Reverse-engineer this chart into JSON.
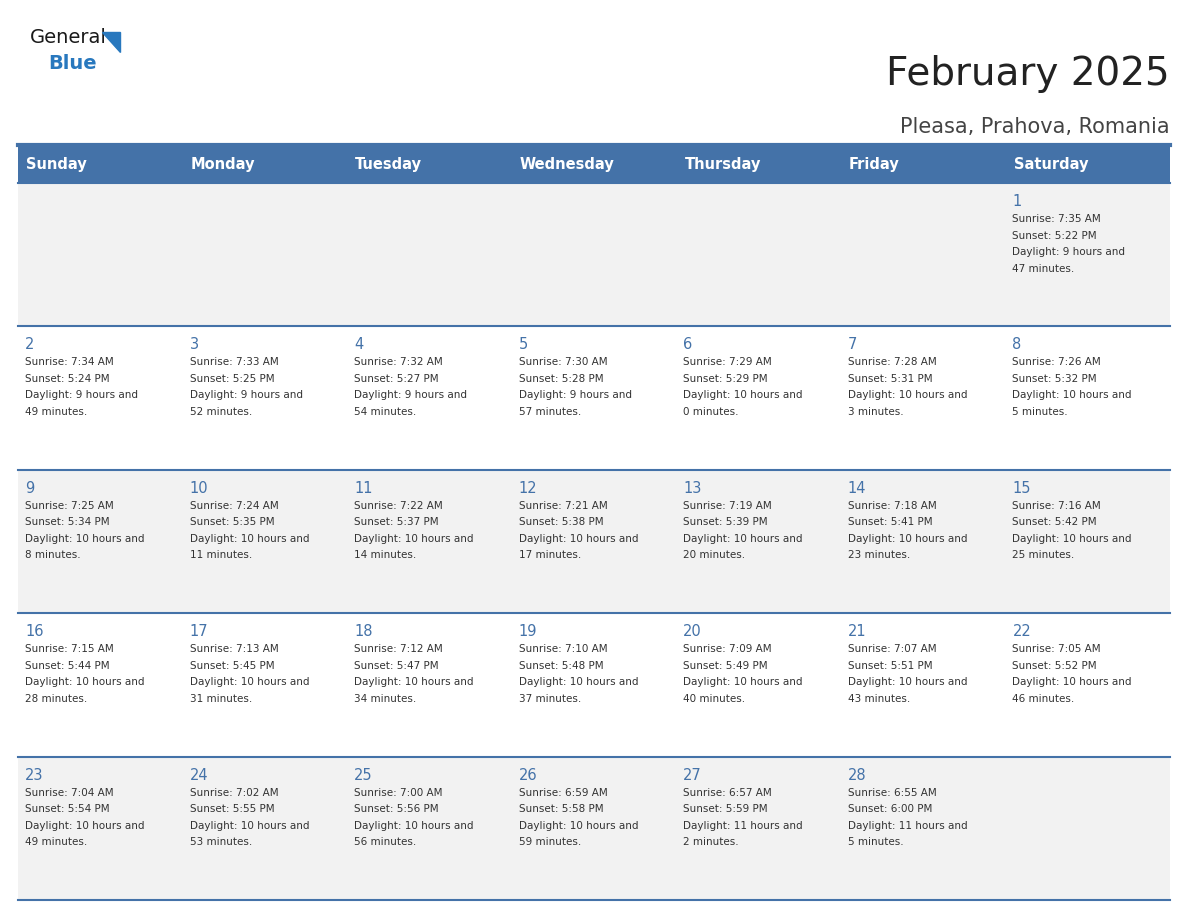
{
  "title": "February 2025",
  "subtitle": "Pleasa, Prahova, Romania",
  "header_color": "#4472A8",
  "header_text_color": "#FFFFFF",
  "weekdays": [
    "Sunday",
    "Monday",
    "Tuesday",
    "Wednesday",
    "Thursday",
    "Friday",
    "Saturday"
  ],
  "cell_bg_even": "#F2F2F2",
  "cell_bg_odd": "#FFFFFF",
  "separator_color": "#4472A8",
  "day_text_color": "#333333",
  "info_text_color": "#333333",
  "title_color": "#222222",
  "subtitle_color": "#444444",
  "logo_general_color": "#1a1a1a",
  "logo_blue_color": "#2878BE",
  "weeks": [
    {
      "days": [
        {
          "day": null,
          "sunrise": null,
          "sunset": null,
          "daylight": null
        },
        {
          "day": null,
          "sunrise": null,
          "sunset": null,
          "daylight": null
        },
        {
          "day": null,
          "sunrise": null,
          "sunset": null,
          "daylight": null
        },
        {
          "day": null,
          "sunrise": null,
          "sunset": null,
          "daylight": null
        },
        {
          "day": null,
          "sunrise": null,
          "sunset": null,
          "daylight": null
        },
        {
          "day": null,
          "sunrise": null,
          "sunset": null,
          "daylight": null
        },
        {
          "day": 1,
          "sunrise": "7:35 AM",
          "sunset": "5:22 PM",
          "daylight": "9 hours and 47 minutes."
        }
      ]
    },
    {
      "days": [
        {
          "day": 2,
          "sunrise": "7:34 AM",
          "sunset": "5:24 PM",
          "daylight": "9 hours and 49 minutes."
        },
        {
          "day": 3,
          "sunrise": "7:33 AM",
          "sunset": "5:25 PM",
          "daylight": "9 hours and 52 minutes."
        },
        {
          "day": 4,
          "sunrise": "7:32 AM",
          "sunset": "5:27 PM",
          "daylight": "9 hours and 54 minutes."
        },
        {
          "day": 5,
          "sunrise": "7:30 AM",
          "sunset": "5:28 PM",
          "daylight": "9 hours and 57 minutes."
        },
        {
          "day": 6,
          "sunrise": "7:29 AM",
          "sunset": "5:29 PM",
          "daylight": "10 hours and 0 minutes."
        },
        {
          "day": 7,
          "sunrise": "7:28 AM",
          "sunset": "5:31 PM",
          "daylight": "10 hours and 3 minutes."
        },
        {
          "day": 8,
          "sunrise": "7:26 AM",
          "sunset": "5:32 PM",
          "daylight": "10 hours and 5 minutes."
        }
      ]
    },
    {
      "days": [
        {
          "day": 9,
          "sunrise": "7:25 AM",
          "sunset": "5:34 PM",
          "daylight": "10 hours and 8 minutes."
        },
        {
          "day": 10,
          "sunrise": "7:24 AM",
          "sunset": "5:35 PM",
          "daylight": "10 hours and 11 minutes."
        },
        {
          "day": 11,
          "sunrise": "7:22 AM",
          "sunset": "5:37 PM",
          "daylight": "10 hours and 14 minutes."
        },
        {
          "day": 12,
          "sunrise": "7:21 AM",
          "sunset": "5:38 PM",
          "daylight": "10 hours and 17 minutes."
        },
        {
          "day": 13,
          "sunrise": "7:19 AM",
          "sunset": "5:39 PM",
          "daylight": "10 hours and 20 minutes."
        },
        {
          "day": 14,
          "sunrise": "7:18 AM",
          "sunset": "5:41 PM",
          "daylight": "10 hours and 23 minutes."
        },
        {
          "day": 15,
          "sunrise": "7:16 AM",
          "sunset": "5:42 PM",
          "daylight": "10 hours and 25 minutes."
        }
      ]
    },
    {
      "days": [
        {
          "day": 16,
          "sunrise": "7:15 AM",
          "sunset": "5:44 PM",
          "daylight": "10 hours and 28 minutes."
        },
        {
          "day": 17,
          "sunrise": "7:13 AM",
          "sunset": "5:45 PM",
          "daylight": "10 hours and 31 minutes."
        },
        {
          "day": 18,
          "sunrise": "7:12 AM",
          "sunset": "5:47 PM",
          "daylight": "10 hours and 34 minutes."
        },
        {
          "day": 19,
          "sunrise": "7:10 AM",
          "sunset": "5:48 PM",
          "daylight": "10 hours and 37 minutes."
        },
        {
          "day": 20,
          "sunrise": "7:09 AM",
          "sunset": "5:49 PM",
          "daylight": "10 hours and 40 minutes."
        },
        {
          "day": 21,
          "sunrise": "7:07 AM",
          "sunset": "5:51 PM",
          "daylight": "10 hours and 43 minutes."
        },
        {
          "day": 22,
          "sunrise": "7:05 AM",
          "sunset": "5:52 PM",
          "daylight": "10 hours and 46 minutes."
        }
      ]
    },
    {
      "days": [
        {
          "day": 23,
          "sunrise": "7:04 AM",
          "sunset": "5:54 PM",
          "daylight": "10 hours and 49 minutes."
        },
        {
          "day": 24,
          "sunrise": "7:02 AM",
          "sunset": "5:55 PM",
          "daylight": "10 hours and 53 minutes."
        },
        {
          "day": 25,
          "sunrise": "7:00 AM",
          "sunset": "5:56 PM",
          "daylight": "10 hours and 56 minutes."
        },
        {
          "day": 26,
          "sunrise": "6:59 AM",
          "sunset": "5:58 PM",
          "daylight": "10 hours and 59 minutes."
        },
        {
          "day": 27,
          "sunrise": "6:57 AM",
          "sunset": "5:59 PM",
          "daylight": "11 hours and 2 minutes."
        },
        {
          "day": 28,
          "sunrise": "6:55 AM",
          "sunset": "6:00 PM",
          "daylight": "11 hours and 5 minutes."
        },
        {
          "day": null,
          "sunrise": null,
          "sunset": null,
          "daylight": null
        }
      ]
    }
  ]
}
